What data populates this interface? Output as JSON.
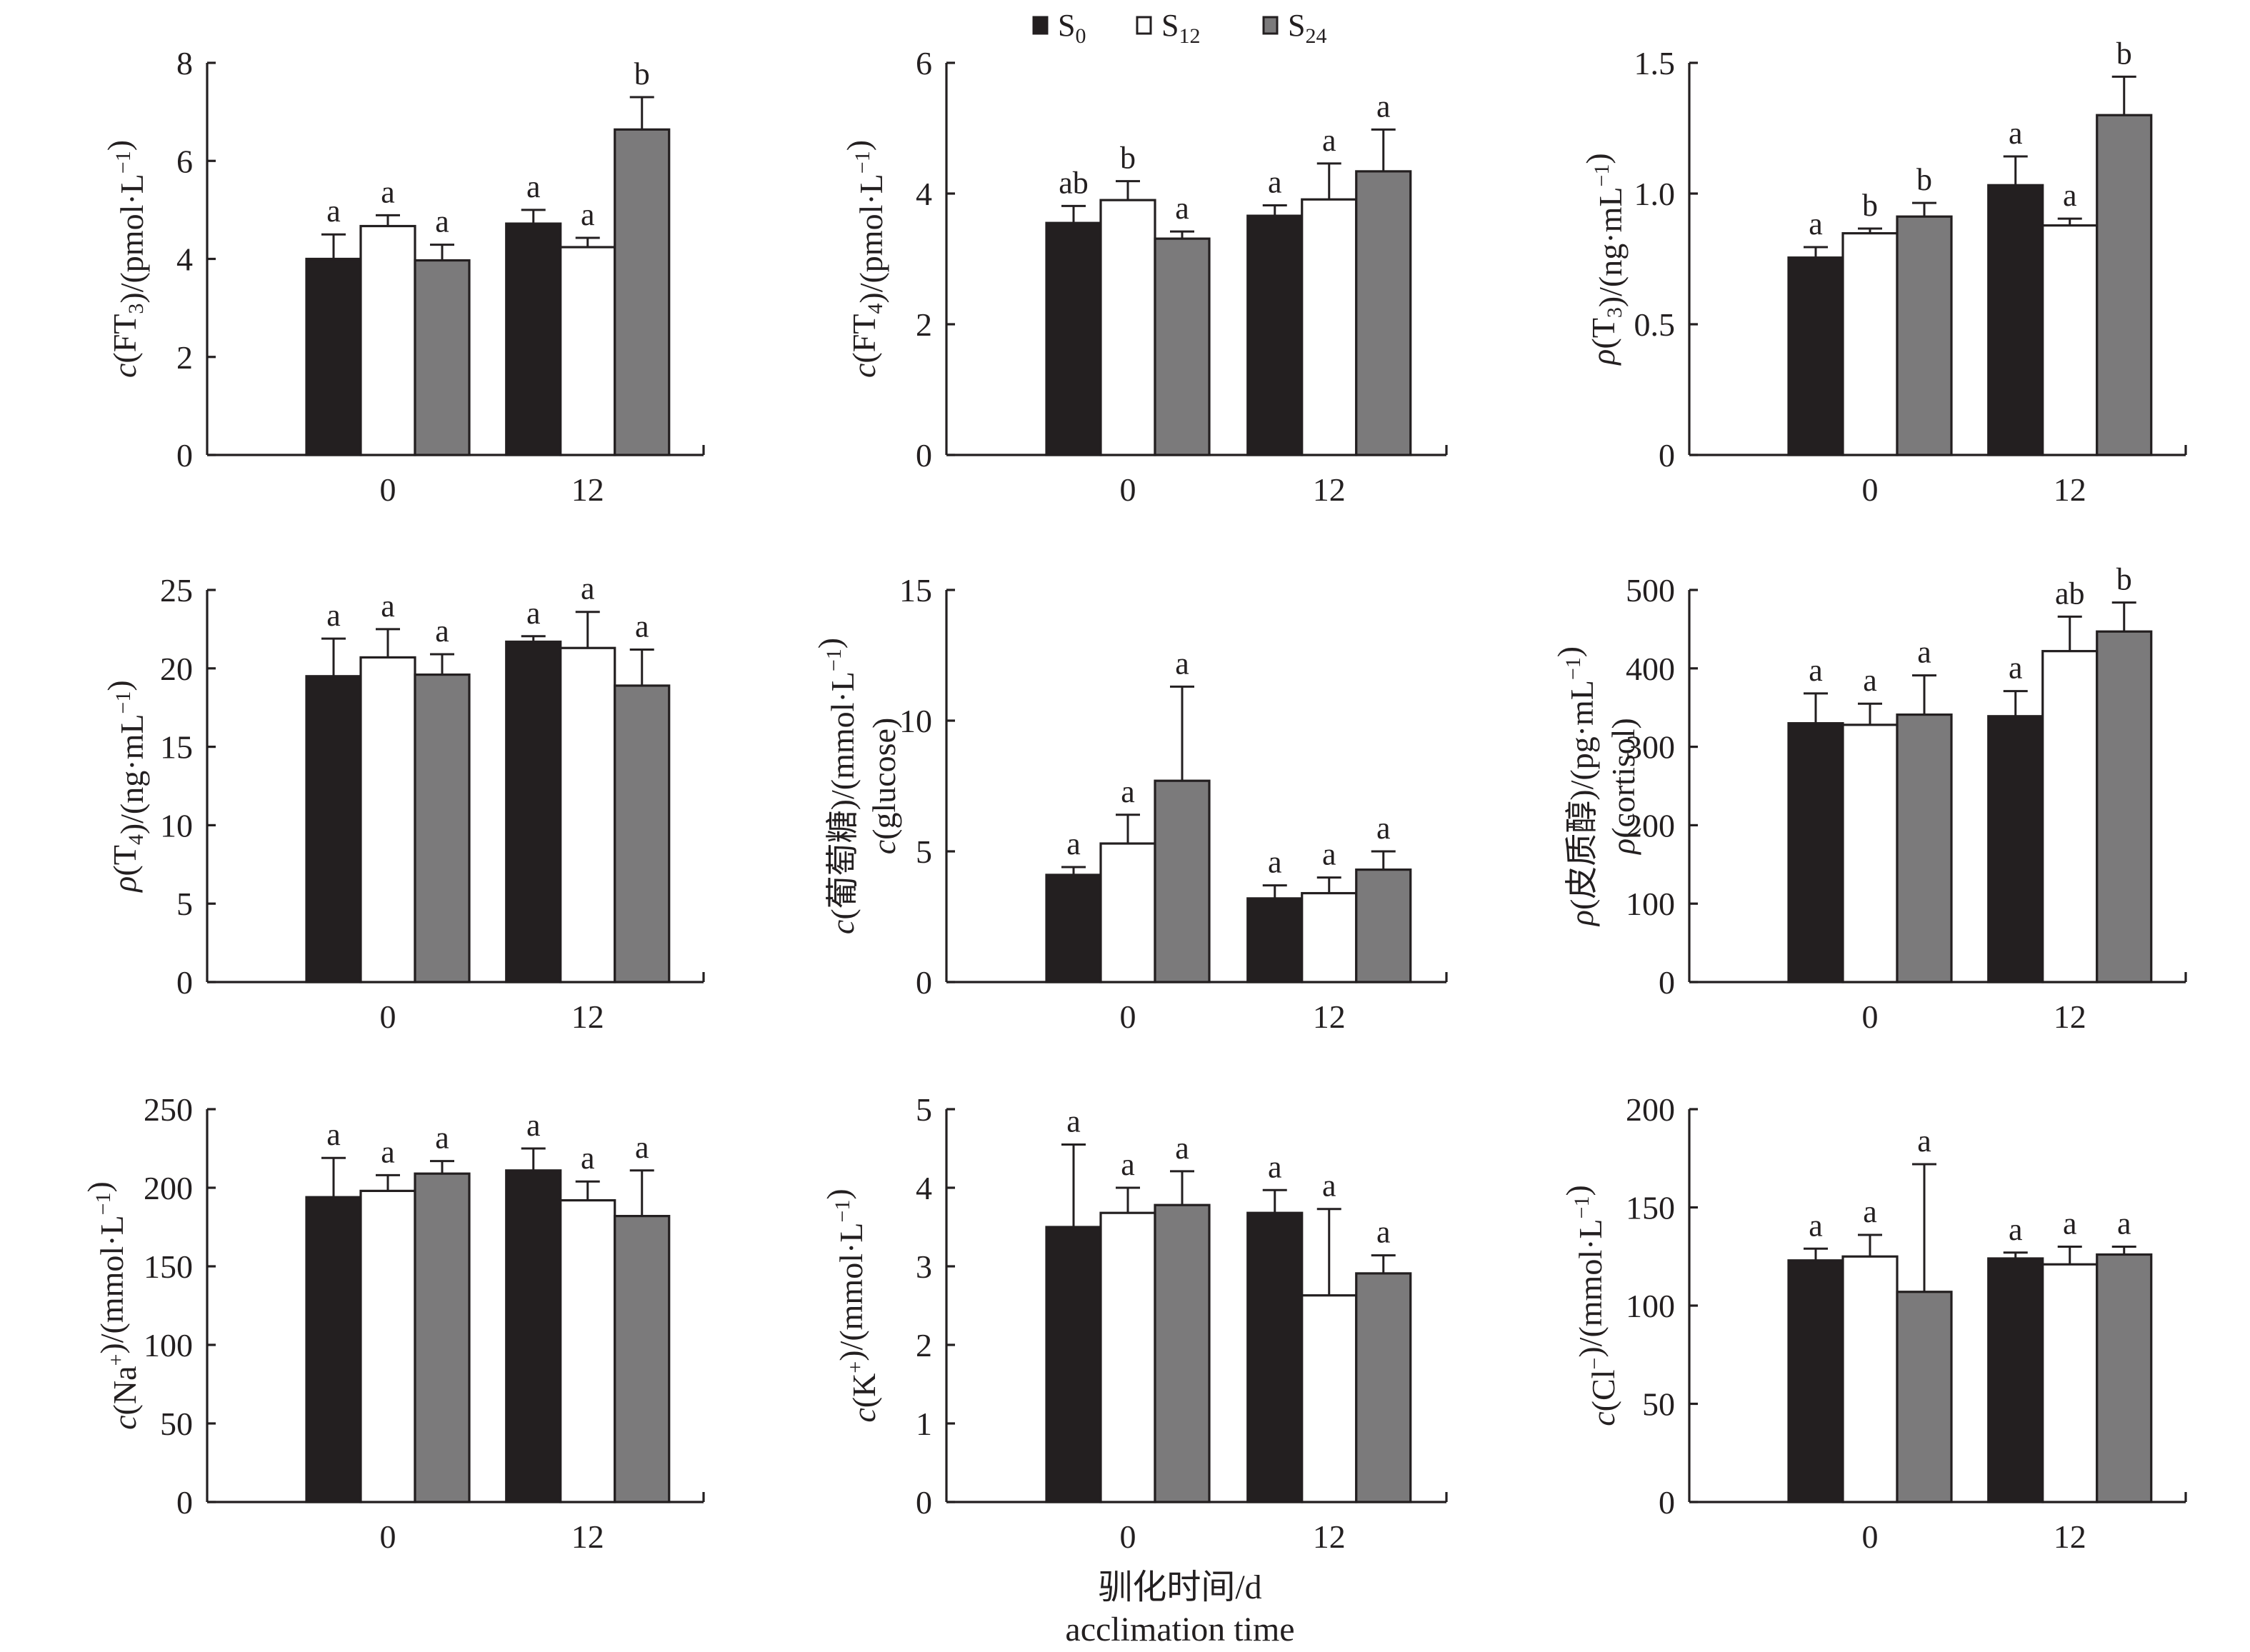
{
  "chart_data": {
    "type": "bar",
    "legend": {
      "position": "top-center",
      "entries": [
        {
          "name": "S",
          "sub": "0",
          "color": "#231f20"
        },
        {
          "name": "S",
          "sub": "12",
          "color": "#ffffff"
        },
        {
          "name": "S",
          "sub": "24",
          "color": "#7b7a7b"
        }
      ]
    },
    "shared_xlabel": [
      "驯化时间/d",
      "acclimation time"
    ],
    "categories": [
      "0",
      "12"
    ],
    "grid": false,
    "panels": [
      {
        "id": "ft3",
        "ylabel_lines": [
          [
            {
              "t": "c",
              "i": true
            },
            {
              "t": "(FT"
            },
            {
              "t": "3",
              "sub": true
            },
            {
              "t": ")/(pmol·L"
            },
            {
              "t": "−1",
              "sup": true
            },
            {
              "t": ")"
            }
          ]
        ],
        "ylim": [
          0,
          8
        ],
        "yticks": [
          "0",
          "2",
          "4",
          "6",
          "8"
        ],
        "ytick_values": [
          0,
          2,
          4,
          6,
          8
        ],
        "series": [
          {
            "name": "S0",
            "values": [
              4.0,
              4.72
            ],
            "errors": [
              0.5,
              0.28
            ],
            "letters": [
              "a",
              "a"
            ]
          },
          {
            "name": "S12",
            "values": [
              4.67,
              4.24
            ],
            "errors": [
              0.22,
              0.19
            ],
            "letters": [
              "a",
              "a"
            ]
          },
          {
            "name": "S24",
            "values": [
              3.97,
              6.64
            ],
            "errors": [
              0.32,
              0.66
            ],
            "letters": [
              "a",
              "b"
            ]
          }
        ]
      },
      {
        "id": "ft4",
        "ylabel_lines": [
          [
            {
              "t": "c",
              "i": true
            },
            {
              "t": "(FT"
            },
            {
              "t": "4",
              "sub": true
            },
            {
              "t": ")/(pmol·L"
            },
            {
              "t": "−1",
              "sup": true
            },
            {
              "t": ")"
            }
          ]
        ],
        "ylim": [
          0,
          6
        ],
        "yticks": [
          "0",
          "2",
          "4",
          "6"
        ],
        "ytick_values": [
          0,
          2,
          4,
          6
        ],
        "series": [
          {
            "name": "S0",
            "values": [
              3.55,
              3.66
            ],
            "errors": [
              0.26,
              0.16
            ],
            "letters": [
              "ab",
              "a"
            ]
          },
          {
            "name": "S12",
            "values": [
              3.9,
              3.91
            ],
            "errors": [
              0.29,
              0.55
            ],
            "letters": [
              "b",
              "a"
            ]
          },
          {
            "name": "S24",
            "values": [
              3.31,
              4.34
            ],
            "errors": [
              0.11,
              0.64
            ],
            "letters": [
              "a",
              "a"
            ]
          }
        ]
      },
      {
        "id": "t3",
        "ylabel_lines": [
          [
            {
              "t": "ρ",
              "i": true
            },
            {
              "t": "(T"
            },
            {
              "t": "3",
              "sub": true
            },
            {
              "t": ")/(ng·mL"
            },
            {
              "t": "−1",
              "sup": true
            },
            {
              "t": ")"
            }
          ]
        ],
        "ylim": [
          0,
          1.5
        ],
        "yticks": [
          "0",
          "0.5",
          "1.0",
          "1.5"
        ],
        "ytick_values": [
          0,
          0.5,
          1.0,
          1.5
        ],
        "series": [
          {
            "name": "S0",
            "values": [
              0.755,
              1.032
            ],
            "errors": [
              0.04,
              0.11
            ],
            "letters": [
              "a",
              "a"
            ]
          },
          {
            "name": "S12",
            "values": [
              0.848,
              0.878
            ],
            "errors": [
              0.018,
              0.026
            ],
            "letters": [
              "b",
              "a"
            ]
          },
          {
            "name": "S24",
            "values": [
              0.912,
              1.3
            ],
            "errors": [
              0.052,
              0.147
            ],
            "letters": [
              "b",
              "b"
            ]
          }
        ]
      },
      {
        "id": "t4",
        "ylabel_lines": [
          [
            {
              "t": "ρ",
              "i": true
            },
            {
              "t": "(T"
            },
            {
              "t": "4",
              "sub": true
            },
            {
              "t": ")/(ng·mL"
            },
            {
              "t": "−1",
              "sup": true
            },
            {
              "t": ")"
            }
          ]
        ],
        "ylim": [
          0,
          25
        ],
        "yticks": [
          "0",
          "5",
          "10",
          "15",
          "20",
          "25"
        ],
        "ytick_values": [
          0,
          5,
          10,
          15,
          20,
          25
        ],
        "series": [
          {
            "name": "S0",
            "values": [
              19.5,
              21.7
            ],
            "errors": [
              2.4,
              0.35
            ],
            "letters": [
              "a",
              "a"
            ]
          },
          {
            "name": "S12",
            "values": [
              20.7,
              21.3
            ],
            "errors": [
              1.8,
              2.3
            ],
            "letters": [
              "a",
              "a"
            ]
          },
          {
            "name": "S24",
            "values": [
              19.6,
              18.9
            ],
            "errors": [
              1.3,
              2.3
            ],
            "letters": [
              "a",
              "a"
            ]
          }
        ]
      },
      {
        "id": "glucose",
        "ylabel_lines": [
          [
            {
              "t": "c",
              "i": true
            },
            {
              "t": "(葡萄糖)/(mmol·L"
            },
            {
              "t": "−1",
              "sup": true
            },
            {
              "t": ")"
            }
          ],
          [
            {
              "t": "c",
              "i": true
            },
            {
              "t": "(glucose)"
            }
          ]
        ],
        "ylim": [
          0,
          15
        ],
        "yticks": [
          "0",
          "5",
          "10",
          "15"
        ],
        "ytick_values": [
          0,
          5,
          10,
          15
        ],
        "series": [
          {
            "name": "S0",
            "values": [
              4.1,
              3.2
            ],
            "errors": [
              0.3,
              0.5
            ],
            "letters": [
              "a",
              "a"
            ]
          },
          {
            "name": "S12",
            "values": [
              5.3,
              3.4
            ],
            "errors": [
              1.1,
              0.6
            ],
            "letters": [
              "a",
              "a"
            ]
          },
          {
            "name": "S24",
            "values": [
              7.7,
              4.3
            ],
            "errors": [
              3.6,
              0.7
            ],
            "letters": [
              "a",
              "a"
            ]
          }
        ]
      },
      {
        "id": "cortisol",
        "ylabel_lines": [
          [
            {
              "t": "ρ",
              "i": true
            },
            {
              "t": "(皮质醇)/(pg·mL"
            },
            {
              "t": "−1",
              "sup": true
            },
            {
              "t": ")"
            }
          ],
          [
            {
              "t": "ρ",
              "i": true
            },
            {
              "t": "(cortisol)"
            }
          ]
        ],
        "ylim": [
          0,
          500
        ],
        "yticks": [
          "0",
          "100",
          "200",
          "300",
          "400",
          "500"
        ],
        "ytick_values": [
          0,
          100,
          200,
          300,
          400,
          500
        ],
        "series": [
          {
            "name": "S0",
            "values": [
              330,
              339
            ],
            "errors": [
              38,
              32
            ],
            "letters": [
              "a",
              "a"
            ]
          },
          {
            "name": "S12",
            "values": [
              328,
              422
            ],
            "errors": [
              27,
              44
            ],
            "letters": [
              "a",
              "ab"
            ]
          },
          {
            "name": "S24",
            "values": [
              341,
              447
            ],
            "errors": [
              50,
              37
            ],
            "letters": [
              "a",
              "b"
            ]
          }
        ]
      },
      {
        "id": "na",
        "ylabel_lines": [
          [
            {
              "t": "c",
              "i": true
            },
            {
              "t": "(Na"
            },
            {
              "t": "+",
              "sup": true
            },
            {
              "t": ")/(mmol·L"
            },
            {
              "t": "−1",
              "sup": true
            },
            {
              "t": ")"
            }
          ]
        ],
        "ylim": [
          0,
          250
        ],
        "yticks": [
          "0",
          "50",
          "100",
          "150",
          "200",
          "250"
        ],
        "ytick_values": [
          0,
          50,
          100,
          150,
          200,
          250
        ],
        "series": [
          {
            "name": "S0",
            "values": [
              194,
              211
            ],
            "errors": [
              25,
              14
            ],
            "letters": [
              "a",
              "a"
            ]
          },
          {
            "name": "S12",
            "values": [
              198,
              192
            ],
            "errors": [
              10,
              12
            ],
            "letters": [
              "a",
              "a"
            ]
          },
          {
            "name": "S24",
            "values": [
              209,
              182
            ],
            "errors": [
              8,
              29
            ],
            "letters": [
              "a",
              "a"
            ]
          }
        ]
      },
      {
        "id": "k",
        "ylabel_lines": [
          [
            {
              "t": "c",
              "i": true
            },
            {
              "t": "(K"
            },
            {
              "t": "+",
              "sup": true
            },
            {
              "t": ")/(mmol·L"
            },
            {
              "t": "−1",
              "sup": true
            },
            {
              "t": ")"
            }
          ]
        ],
        "ylim": [
          0,
          5
        ],
        "yticks": [
          "0",
          "1",
          "2",
          "3",
          "4",
          "5"
        ],
        "ytick_values": [
          0,
          1,
          2,
          3,
          4,
          5
        ],
        "series": [
          {
            "name": "S0",
            "values": [
              3.5,
              3.68
            ],
            "errors": [
              1.05,
              0.29
            ],
            "letters": [
              "a",
              "a"
            ]
          },
          {
            "name": "S12",
            "values": [
              3.68,
              2.63
            ],
            "errors": [
              0.32,
              1.1
            ],
            "letters": [
              "a",
              "a"
            ]
          },
          {
            "name": "S24",
            "values": [
              3.78,
              2.91
            ],
            "errors": [
              0.43,
              0.23
            ],
            "letters": [
              "a",
              "a"
            ]
          }
        ]
      },
      {
        "id": "cl",
        "ylabel_lines": [
          [
            {
              "t": "c",
              "i": true
            },
            {
              "t": "(Cl"
            },
            {
              "t": "−",
              "sup": true
            },
            {
              "t": ")/(mmol·L"
            },
            {
              "t": "−1",
              "sup": true
            },
            {
              "t": ")"
            }
          ]
        ],
        "ylim": [
          0,
          200
        ],
        "yticks": [
          "0",
          "50",
          "100",
          "150",
          "200"
        ],
        "ytick_values": [
          0,
          50,
          100,
          150,
          200
        ],
        "series": [
          {
            "name": "S0",
            "values": [
              123,
              124
            ],
            "errors": [
              6,
              3
            ],
            "letters": [
              "a",
              "a"
            ]
          },
          {
            "name": "S12",
            "values": [
              125,
              121
            ],
            "errors": [
              11,
              9
            ],
            "letters": [
              "a",
              "a"
            ]
          },
          {
            "name": "S24",
            "values": [
              107,
              126
            ],
            "errors": [
              65,
              4
            ],
            "letters": [
              "a",
              "a"
            ]
          }
        ]
      }
    ]
  }
}
